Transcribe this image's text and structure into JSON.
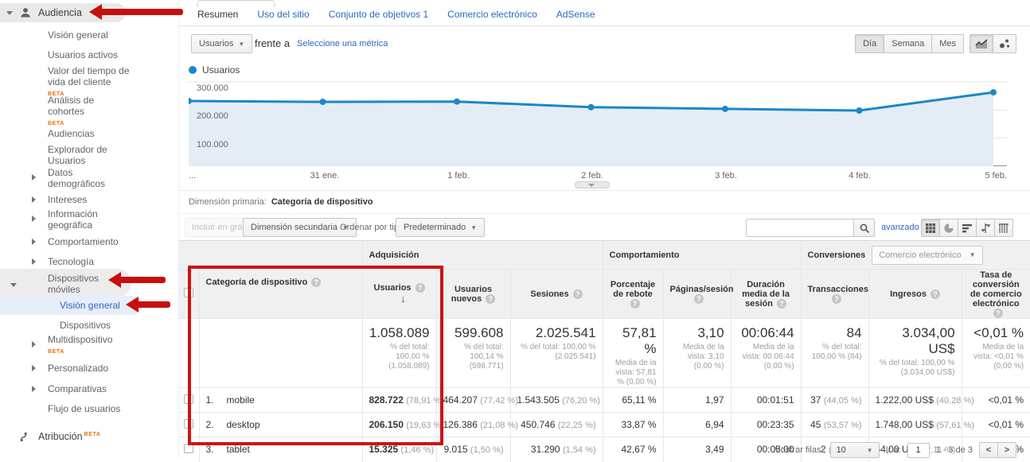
{
  "colors": {
    "link_blue": "#2f66c4",
    "chart_blue": "#1b87c9",
    "annotation_red": "#cf1212",
    "beta_orange": "#e8710a"
  },
  "sidebar": {
    "section_label": "Audiencia",
    "items": [
      {
        "label": "Visión general"
      },
      {
        "label": "Usuarios activos"
      },
      {
        "label": "Valor del tiempo de vida del cliente",
        "beta": "BETA"
      },
      {
        "label": "Análisis de cohortes",
        "beta": "BETA"
      },
      {
        "label": "Audiencias"
      },
      {
        "label": "Explorador de Usuarios"
      },
      {
        "label": "Datos demográficos"
      },
      {
        "label": "Intereses"
      },
      {
        "label": "Información geográfica"
      },
      {
        "label": "Comportamiento"
      },
      {
        "label": "Tecnología"
      },
      {
        "label": "Dispositivos móviles"
      },
      {
        "label": "Visión general"
      },
      {
        "label": "Dispositivos"
      },
      {
        "label": "Multidispositivo",
        "beta": "BETA"
      },
      {
        "label": "Personalizado"
      },
      {
        "label": "Comparativas"
      },
      {
        "label": "Flujo de usuarios"
      }
    ],
    "atribucion_label": "Atribución",
    "atribucion_beta": "BETA"
  },
  "tabs": [
    "Resumen",
    "Uso del sitio",
    "Conjunto de objetivos 1",
    "Comercio electrónico",
    "AdSense"
  ],
  "controls": {
    "metric_selector": "Usuarios",
    "versus": "frente a",
    "select_metric": "Seleccione una métrica",
    "granularity": [
      "Día",
      "Semana",
      "Mes"
    ]
  },
  "chart_data": {
    "type": "line",
    "legend": "Usuarios",
    "x_labels": [
      "...",
      "31 ene.",
      "1 feb.",
      "2 feb.",
      "3 feb.",
      "4 feb.",
      "5 feb."
    ],
    "y_ticks": [
      "300.000",
      "200.000",
      "100.000"
    ],
    "gridline_values": [
      300000,
      200000,
      100000
    ],
    "ylim": [
      0,
      300000
    ],
    "series": [
      {
        "name": "Usuarios",
        "values": [
          232000,
          229000,
          230000,
          210000,
          204000,
          198000,
          263000
        ]
      }
    ],
    "values_estimated": true
  },
  "dimension_bar": {
    "label": "Dimensión primaria:",
    "value": "Categoría de dispositivo"
  },
  "toolbar": {
    "include_in_chart": "Incluir en gráfico",
    "secondary_dimension": "Dimensión secundaria",
    "sort_by_label": "Ordenar por tipo:",
    "sort_by_value": "Predeterminado",
    "search_value": "",
    "advanced": "avanzado"
  },
  "table": {
    "groups": {
      "acquisition": "Adquisición",
      "behavior": "Comportamiento",
      "conversions": "Conversiones",
      "conversions_dropdown": "Comercio electrónico"
    },
    "headers": {
      "device": "Categoría de dispositivo",
      "users": "Usuarios",
      "new_users": "Usuarios nuevos",
      "sessions": "Sesiones",
      "bounce": "Porcentaje de rebote",
      "pages": "Páginas/sesión",
      "duration": "Duración media de la sesión",
      "transactions": "Transacciones",
      "revenue": "Ingresos",
      "conv_rate": "Tasa de conversión de comercio electrónico"
    },
    "totals": {
      "users": {
        "v": "1.058.089",
        "s": "% del total: 100,00 % (1.058.089)"
      },
      "new_users": {
        "v": "599.608",
        "s": "% del total: 100,14 % (598.771)"
      },
      "sessions": {
        "v": "2.025.541",
        "s": "% del total: 100,00 % (2.025.541)"
      },
      "bounce": {
        "v": "57,81 %",
        "s": "Media de la vista: 57,81 % (0,00 %)"
      },
      "pages": {
        "v": "3,10",
        "s": "Media de la vista: 3,10 (0,00 %)"
      },
      "duration": {
        "v": "00:06:44",
        "s": "Media de la vista: 00:06:44 (0,00 %)"
      },
      "transactions": {
        "v": "84",
        "s": "% del total: 100,00 % (84)"
      },
      "revenue": {
        "v": "3.034,00 US$",
        "s": "% del total: 100,00 % (3.034,00 US$)"
      },
      "conv_rate": {
        "v": "<0,01 %",
        "s": "Media de la vista: <0,01 % (0,00 %)"
      }
    },
    "rows": [
      {
        "rank": "1.",
        "name": "mobile",
        "users": "828.722",
        "users_pct": "(78,91 %)",
        "new_users": "464.207",
        "new_users_pct": "(77,42 %)",
        "sessions": "1.543.505",
        "sessions_pct": "(76,20 %)",
        "bounce": "65,11 %",
        "pages": "1,97",
        "duration": "00:01:51",
        "transactions": "37",
        "transactions_pct": "(44,05 %)",
        "revenue": "1.222,00 US$",
        "revenue_pct": "(40,28 %)",
        "conv_rate": "<0,01 %"
      },
      {
        "rank": "2.",
        "name": "desktop",
        "users": "206.150",
        "users_pct": "(19,63 %)",
        "new_users": "126.386",
        "new_users_pct": "(21,08 %)",
        "sessions": "450.746",
        "sessions_pct": "(22,25 %)",
        "bounce": "33,87 %",
        "pages": "6,94",
        "duration": "00:23:35",
        "transactions": "45",
        "transactions_pct": "(53,57 %)",
        "revenue": "1.748,00 US$",
        "revenue_pct": "(57,61 %)",
        "conv_rate": "<0,01 %"
      },
      {
        "rank": "3.",
        "name": "tablet",
        "users": "15.325",
        "users_pct": "(1,46 %)",
        "new_users": "9.015",
        "new_users_pct": "(1,50 %)",
        "sessions": "31.290",
        "sessions_pct": "(1,54 %)",
        "bounce": "42,67 %",
        "pages": "3,49",
        "duration": "00:05:00",
        "transactions": "2",
        "transactions_pct": "(2,38 %)",
        "revenue": "64,00 US$",
        "revenue_pct": "(2,11 %)",
        "conv_rate": "<0,01 %"
      }
    ]
  },
  "footer": {
    "show_rows_label": "Mostrar filas:",
    "show_rows_value": "10",
    "goto_label": "Ir a:",
    "goto_value": "1",
    "range": "1 - 3 de 3"
  }
}
